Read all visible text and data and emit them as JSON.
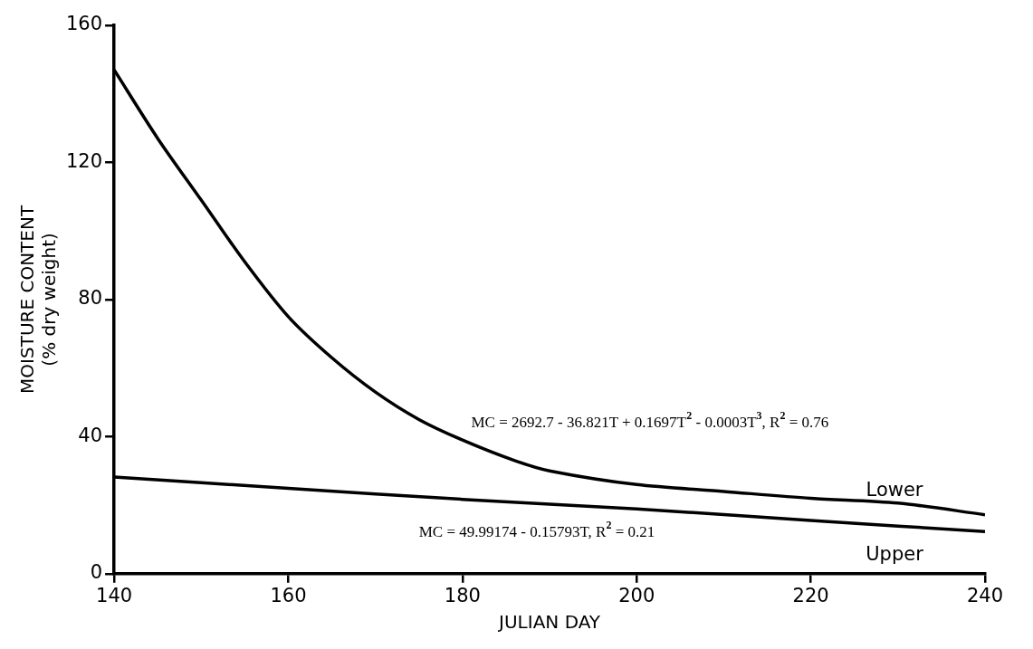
{
  "chart_data": {
    "type": "line",
    "xlabel": "JULIAN DAY",
    "ylabel": "MOISTURE CONTENT\n(% dry weight)",
    "xlim": [
      140,
      240
    ],
    "xticks": [
      140,
      160,
      180,
      200,
      220,
      240
    ],
    "ylim": [
      0,
      160
    ],
    "yticks": [
      0,
      40,
      80,
      120,
      160
    ],
    "grid": false,
    "legend": false,
    "marker": "none",
    "line_style": "solid",
    "series": [
      {
        "name": "Lower",
        "color": "#000000",
        "x": [
          140,
          145,
          150,
          155,
          160,
          165,
          170,
          175,
          180,
          186,
          190,
          200,
          210,
          220,
          230,
          240
        ],
        "values": [
          147,
          127,
          109,
          91,
          75,
          63,
          53,
          45,
          39,
          33,
          30,
          26,
          24,
          22,
          20.6,
          17.2
        ]
      },
      {
        "name": "Upper",
        "color": "#000000",
        "x": [
          140,
          160,
          180,
          200,
          220,
          240
        ],
        "values": [
          28.2,
          24.9,
          21.7,
          18.9,
          15.5,
          12.3
        ]
      }
    ],
    "annotations": [
      "MC = 2692.7 - 36.821T + 0.1697T$^{2}$ - 0.0003T$^{3}$, R$^{2}$ = 0.76",
      "MC = 49.99174 - 0.15793T, R$^{2}$ = 0.21"
    ]
  }
}
